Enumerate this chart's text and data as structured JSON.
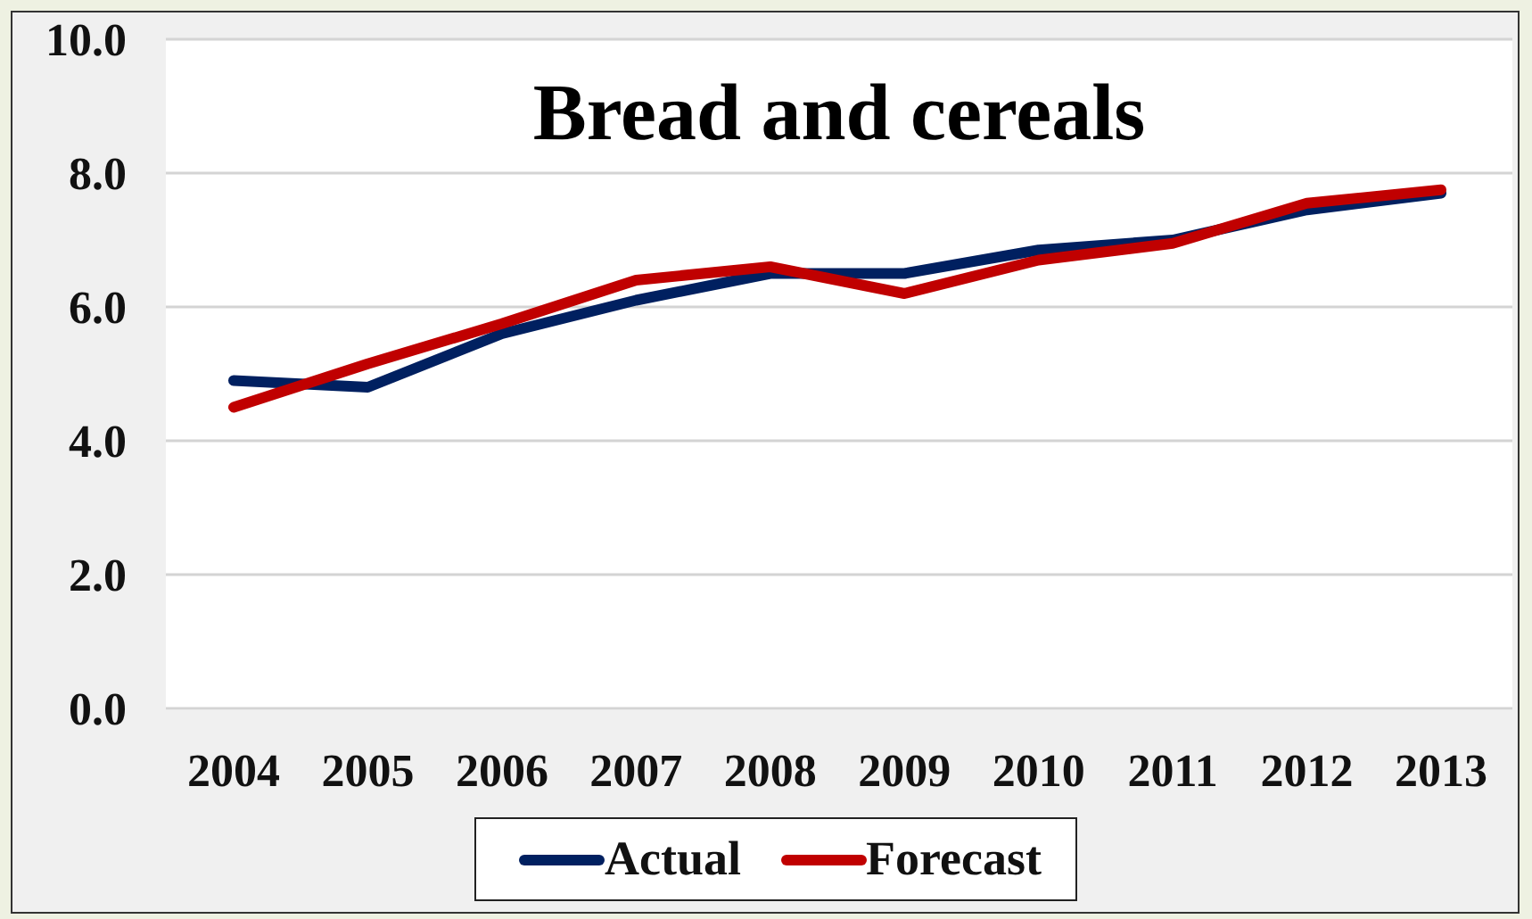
{
  "chart_data": {
    "type": "line",
    "title": "Bread and cereals",
    "categories": [
      "2004",
      "2005",
      "2006",
      "2007",
      "2008",
      "2009",
      "2010",
      "2011",
      "2012",
      "2013"
    ],
    "series": [
      {
        "name": "Actual",
        "color": "#002060",
        "values": [
          4.9,
          4.8,
          5.6,
          6.1,
          6.5,
          6.5,
          6.85,
          7.0,
          7.45,
          7.7
        ]
      },
      {
        "name": "Forecast",
        "color": "#c00000",
        "values": [
          4.5,
          5.15,
          5.75,
          6.4,
          6.6,
          6.2,
          6.7,
          6.95,
          7.55,
          7.75
        ]
      }
    ],
    "ylim": [
      0,
      10
    ],
    "yticks": [
      {
        "value": 0,
        "label": "0.0"
      },
      {
        "value": 2,
        "label": "2.0"
      },
      {
        "value": 4,
        "label": "4.0"
      },
      {
        "value": 6,
        "label": "6.0"
      },
      {
        "value": 8,
        "label": "8.0"
      },
      {
        "value": 10,
        "label": "10.0"
      }
    ],
    "grid": "y",
    "legend": "bottom",
    "marker": "none",
    "line_style": "solid"
  }
}
